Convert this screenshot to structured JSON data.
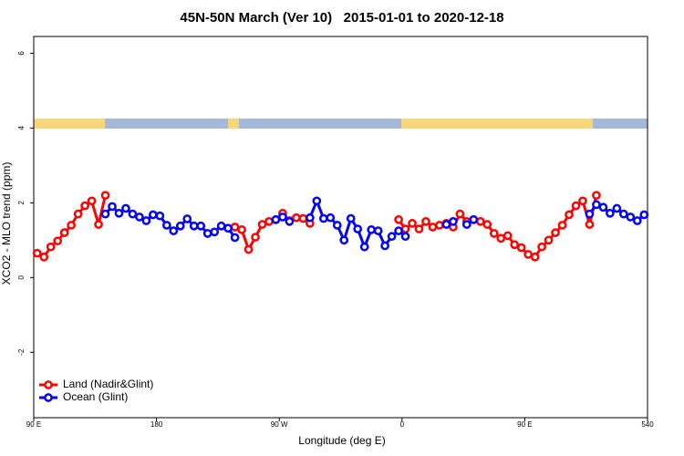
{
  "chart_data": {
    "type": "line",
    "title": "45N-50N March (Ver 10)   2015-01-01 to 2020-12-18",
    "xlabel": "Longitude (deg E)",
    "ylabel": "XCO2 - MLO trend (ppm)",
    "x": [
      92.5,
      97.5,
      102.5,
      107.5,
      112.5,
      117.5,
      122.5,
      127.5,
      132.5,
      137.5,
      142.5,
      147.5,
      152.5,
      157.5,
      162.5,
      167.5,
      172.5,
      177.5,
      182.5,
      187.5,
      192.5,
      197.5,
      202.5,
      207.5,
      212.5,
      217.5,
      222.5,
      227.5,
      232.5,
      237.5,
      242.5,
      247.5,
      252.5,
      257.5,
      262.5,
      267.5,
      272.5,
      277.5,
      282.5,
      287.5,
      292.5,
      297.5,
      302.5,
      307.5,
      312.5,
      317.5,
      322.5,
      327.5,
      332.5,
      337.5,
      342.5,
      347.5,
      352.5,
      357.5,
      362.5,
      367.5,
      372.5,
      377.5,
      382.5,
      387.5,
      392.5,
      397.5,
      402.5,
      407.5,
      412.5,
      417.5,
      422.5,
      427.5,
      432.5,
      437.5,
      442.5,
      447.5,
      452.5,
      457.5,
      462.5,
      467.5,
      472.5,
      477.5,
      482.5,
      487.5,
      492.5,
      497.5,
      502.5,
      507.5,
      512.5,
      517.5,
      522.5,
      527.5,
      532.5,
      537.5
    ],
    "series": [
      {
        "name": "Land (Nadir&Glint)",
        "color": "#ff0000",
        "values": [
          0.65,
          0.55,
          0.82,
          0.98,
          1.2,
          1.4,
          1.7,
          1.92,
          2.05,
          1.42,
          2.2,
          null,
          null,
          null,
          null,
          null,
          null,
          null,
          null,
          null,
          null,
          null,
          null,
          null,
          null,
          null,
          null,
          null,
          null,
          1.35,
          1.28,
          0.75,
          1.08,
          1.42,
          1.5,
          1.55,
          1.72,
          1.52,
          1.6,
          1.58,
          1.45,
          null,
          null,
          null,
          null,
          null,
          null,
          null,
          null,
          null,
          null,
          null,
          null,
          1.55,
          1.3,
          1.45,
          1.3,
          1.5,
          1.35,
          1.4,
          1.45,
          1.35,
          1.7,
          1.5,
          1.55,
          1.5,
          1.42,
          1.18,
          1.05,
          1.12,
          0.88,
          0.8,
          0.62,
          0.55,
          0.82,
          1.0,
          1.2,
          1.4,
          1.68,
          1.92,
          2.05,
          1.42,
          2.2,
          null,
          null,
          null,
          null,
          null,
          null,
          null
        ]
      },
      {
        "name": "Ocean (Glint)",
        "color": "#0000ff",
        "values": [
          null,
          null,
          null,
          null,
          null,
          null,
          null,
          null,
          null,
          null,
          1.7,
          1.9,
          1.72,
          1.85,
          1.7,
          1.62,
          1.52,
          1.68,
          1.65,
          1.4,
          1.25,
          1.38,
          1.57,
          1.38,
          1.38,
          1.18,
          1.22,
          1.38,
          1.32,
          1.07,
          null,
          null,
          null,
          null,
          null,
          1.55,
          1.62,
          1.5,
          null,
          null,
          1.6,
          2.05,
          1.58,
          1.6,
          1.4,
          1.0,
          1.58,
          1.3,
          0.82,
          1.28,
          1.25,
          0.85,
          1.1,
          1.25,
          1.1,
          null,
          null,
          null,
          null,
          null,
          1.42,
          1.5,
          null,
          1.42,
          1.55,
          null,
          null,
          null,
          null,
          null,
          null,
          null,
          null,
          null,
          null,
          null,
          null,
          null,
          null,
          null,
          null,
          1.7,
          1.95,
          1.88,
          1.72,
          1.85,
          1.7,
          1.62,
          1.52,
          1.68
        ]
      }
    ],
    "xlim": [
      90,
      540
    ],
    "xticks": [
      {
        "value": 90,
        "label": "90 E"
      },
      180,
      {
        "value": 270,
        "label": "90 W"
      },
      {
        "value": 360,
        "label": "0"
      },
      {
        "value": 450,
        "label": "90 E"
      },
      540
    ],
    "ylim": [
      -3.75,
      6.45
    ],
    "yticks": [
      -2,
      0,
      2,
      4,
      6
    ],
    "legend": "bottom-left"
  }
}
